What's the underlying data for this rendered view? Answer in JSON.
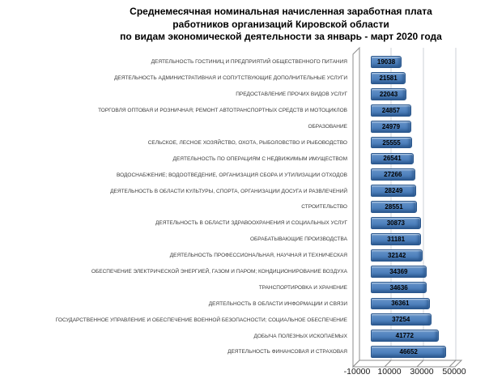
{
  "title": {
    "lines": [
      "Среднемесячная номинальная начисленная заработная плата",
      "работников организаций Кировской области",
      "по видам экономической деятельности за январь - март 2020 года"
    ]
  },
  "chart_data": {
    "type": "bar",
    "orientation": "horizontal",
    "style": "3d",
    "title": "Среднемесячная номинальная начисленная заработная плата работников организаций Кировской области по видам экономической деятельности за январь - март 2020 года",
    "categories": [
      "ДЕЯТЕЛЬНОСТЬ ГОСТИНИЦ И ПРЕДПРИЯТИЙ ОБЩЕСТВЕННОГО ПИТАНИЯ",
      "ДЕЯТЕЛЬНОСТЬ АДМИНИСТРАТИВНАЯ И СОПУТСТВУЮЩИЕ ДОПОЛНИТЕЛЬНЫЕ УСЛУГИ",
      "ПРЕДОСТАВЛЕНИЕ ПРОЧИХ ВИДОВ УСЛУГ",
      "ТОРГОВЛЯ ОПТОВАЯ И РОЗНИЧНАЯ; РЕМОНТ АВТОТРАНСПОРТНЫХ СРЕДСТВ И МОТОЦИКЛОВ",
      "ОБРАЗОВАНИЕ",
      "СЕЛЬСКОЕ, ЛЕСНОЕ ХОЗЯЙСТВО, ОХОТА, РЫБОЛОВСТВО И РЫБОВОДСТВО",
      "ДЕЯТЕЛЬНОСТЬ ПО ОПЕРАЦИЯМ С НЕДВИЖИМЫМ ИМУЩЕСТВОМ",
      "ВОДОСНАБЖЕНИЕ; ВОДООТВЕДЕНИЕ, ОРГАНИЗАЦИЯ СБОРА И УТИЛИЗАЦИИ ОТХОДОВ",
      "ДЕЯТЕЛЬНОСТЬ В ОБЛАСТИ КУЛЬТУРЫ, СПОРТА, ОРГАНИЗАЦИИ ДОСУГА И РАЗВЛЕЧЕНИЙ",
      "СТРОИТЕЛЬСТВО",
      "ДЕЯТЕЛЬНОСТЬ В ОБЛАСТИ ЗДРАВООХРАНЕНИЯ И СОЦИАЛЬНЫХ УСЛУГ",
      "ОБРАБАТЫВАЮЩИЕ ПРОИЗВОДСТВА",
      "ДЕЯТЕЛЬНОСТЬ ПРОФЕССИОНАЛЬНАЯ, НАУЧНАЯ И ТЕХНИЧЕСКАЯ",
      "ОБЕСПЕЧЕНИЕ ЭЛЕКТРИЧЕСКОЙ ЭНЕРГИЕЙ, ГАЗОМ И ПАРОМ; КОНДИЦИОНИРОВАНИЕ ВОЗДУХА",
      "ТРАНСПОРТИРОВКА И ХРАНЕНИЕ",
      "ДЕЯТЕЛЬНОСТЬ В ОБЛАСТИ ИНФОРМАЦИИ И СВЯЗИ",
      "ГОСУДАРСТВЕННОЕ УПРАВЛЕНИЕ И ОБЕСПЕЧЕНИЕ ВОЕННОЙ БЕЗОПАСНОСТИ; СОЦИАЛЬНОЕ ОБЕСПЕЧЕНИЕ",
      "ДОБЫЧА ПОЛЕЗНЫХ ИСКОПАЕМЫХ",
      "ДЕЯТЕЛЬНОСТЬ ФИНАНСОВАЯ И СТРАХОВАЯ"
    ],
    "values": [
      19038,
      21581,
      22043,
      24857,
      24979,
      25555,
      26541,
      27266,
      28249,
      28551,
      30873,
      31181,
      32142,
      34369,
      34636,
      36361,
      37254,
      41772,
      46652
    ],
    "xlim": [
      -10000,
      53000
    ],
    "xticks": [
      -10000,
      10000,
      30000,
      50000
    ],
    "xtick_labels": [
      "-10000",
      "10000",
      "30000",
      "50000"
    ],
    "grid": true,
    "legend": false,
    "colors": {
      "bar_fill": "#4f81bd",
      "bar_border": "#29568c",
      "gridline": "#cdd1d7",
      "axis_frame": "#8c8c8c",
      "value_label": "#000000",
      "category_label": "#3a3a3a",
      "background": "#ffffff"
    }
  }
}
